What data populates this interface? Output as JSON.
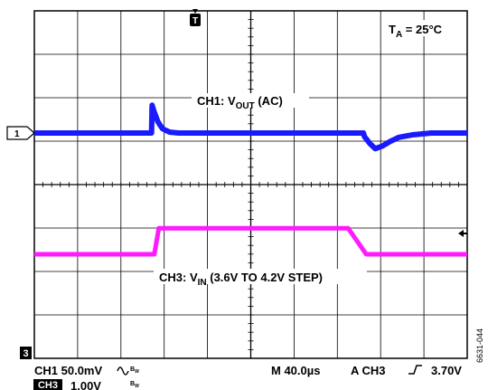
{
  "chart_data": {
    "type": "line",
    "time_unit": "µs",
    "series": [
      {
        "name": "CH1: VOUT (AC)",
        "channel": "1",
        "color": "#1a1aff",
        "units": "mV",
        "points": [
          [
            0,
            0
          ],
          [
            129,
            0
          ],
          [
            130,
            0
          ],
          [
            130.6,
            -32
          ],
          [
            133,
            -24
          ],
          [
            137,
            -13
          ],
          [
            142,
            -5
          ],
          [
            150,
            -1
          ],
          [
            160,
            0
          ],
          [
            350,
            0
          ],
          [
            365,
            0
          ],
          [
            366,
            4
          ],
          [
            372,
            12
          ],
          [
            378,
            18
          ],
          [
            386,
            15
          ],
          [
            394,
            10
          ],
          [
            404,
            5
          ],
          [
            420,
            2
          ],
          [
            440,
            0
          ],
          [
            480,
            0
          ]
        ]
      },
      {
        "name": "CH3: VIN (3.6V TO 4.2V STEP)",
        "channel": "3",
        "color": "#ff1aff",
        "units": "V",
        "points": [
          [
            0,
            3.6
          ],
          [
            133,
            3.6
          ],
          [
            138,
            4.2
          ],
          [
            348,
            4.2
          ],
          [
            368,
            3.6
          ],
          [
            480,
            3.6
          ]
        ]
      }
    ]
  },
  "labels": {
    "ch1_label": "CH1: V",
    "ch1_sub": "OUT",
    "ch1_tail": " (AC)",
    "ch3_label": "CH3: V",
    "ch3_sub": "IN",
    "ch3_tail": " (3.6V TO 4.2V STEP)",
    "ta_label": "T",
    "ta_sub": "A",
    "ta_tail": " = 25°C",
    "trigger_marker": "T",
    "marker_ch1": "1",
    "marker_ch3": "3"
  },
  "readout": {
    "ch1": "CH1  50.0mV",
    "bw": "B",
    "bw_sub": "W",
    "ch3_badge": "CH3",
    "ch3_scale": "1.00V",
    "timebase": "M 40.0µs",
    "trigger": "A  CH3",
    "trigger_level": "3.70V"
  },
  "figure_id": "6631-044"
}
